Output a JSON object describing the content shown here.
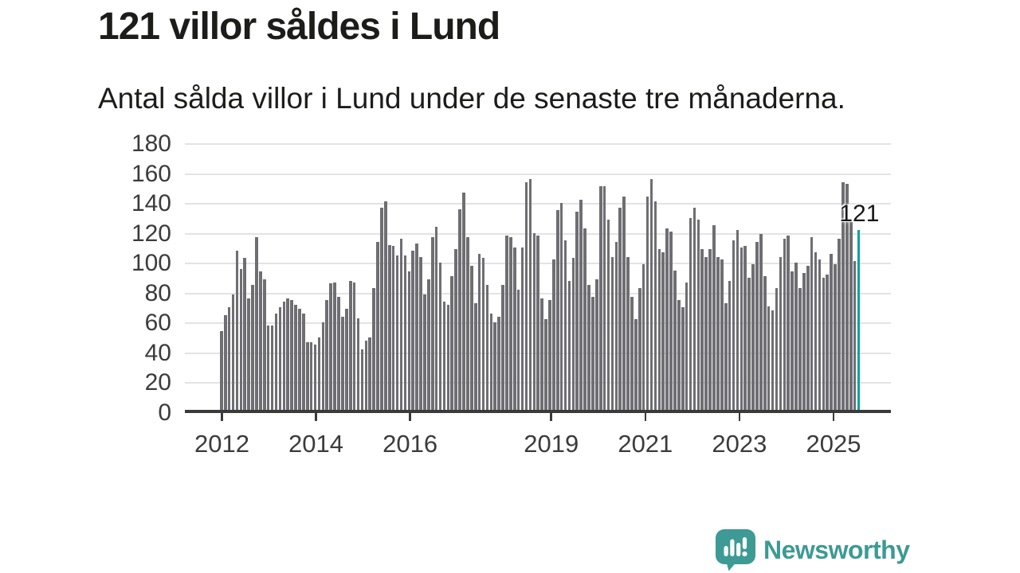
{
  "header": {
    "title": "121 villor såldes i Lund",
    "subtitle": "Antal sålda villor i Lund under de senaste tre månaderna."
  },
  "annotation": {
    "value_label": "121"
  },
  "branding": {
    "name": "Newsworthy",
    "icon": "speech-bubble-bar-chart-icon"
  },
  "colors": {
    "bar": "#6e6e73",
    "highlight": "#00a49c",
    "gridline": "#e3e3e3",
    "axis": "#3a3a3a",
    "text": "#1c1c1a",
    "brand": "#3d9a94"
  },
  "chart_data": {
    "type": "bar",
    "title": "121 villor såldes i Lund",
    "subtitle": "Antal sålda villor i Lund under de senaste tre månaderna.",
    "x_description": "monthly bars from January 2012, rolling three-month totals",
    "values": [
      53,
      64,
      69,
      78,
      107,
      95,
      102,
      75,
      84,
      116,
      93,
      88,
      57,
      57,
      65,
      69,
      73,
      75,
      74,
      71,
      68,
      65,
      46,
      46,
      44,
      49,
      59,
      74,
      85,
      86,
      76,
      63,
      68,
      87,
      86,
      62,
      41,
      47,
      49,
      82,
      113,
      136,
      140,
      111,
      110,
      104,
      115,
      104,
      93,
      107,
      112,
      103,
      78,
      88,
      116,
      123,
      99,
      73,
      71,
      90,
      108,
      135,
      146,
      116,
      97,
      72,
      105,
      102,
      84,
      65,
      59,
      63,
      84,
      117,
      116,
      109,
      81,
      109,
      153,
      155,
      119,
      117,
      75,
      61,
      74,
      101,
      134,
      139,
      114,
      87,
      102,
      133,
      141,
      122,
      84,
      76,
      88,
      150,
      150,
      128,
      103,
      113,
      136,
      143,
      103,
      76,
      61,
      82,
      98,
      143,
      155,
      140,
      108,
      106,
      122,
      120,
      94,
      74,
      69,
      86,
      129,
      136,
      128,
      108,
      103,
      108,
      124,
      103,
      101,
      72,
      87,
      114,
      121,
      109,
      110,
      89,
      98,
      113,
      118,
      90,
      70,
      67,
      82,
      103,
      115,
      117,
      93,
      99,
      82,
      92,
      97,
      116,
      106,
      101,
      89,
      91,
      105,
      98,
      115,
      153,
      152,
      128,
      100,
      121
    ],
    "highlight_index": 163,
    "highlight_value": 121,
    "ylim": [
      0,
      180
    ],
    "yticks": [
      0,
      20,
      40,
      60,
      80,
      100,
      120,
      140,
      160,
      180
    ],
    "x_ticks": [
      {
        "label": "2012",
        "index": 0
      },
      {
        "label": "2014",
        "index": 24
      },
      {
        "label": "2016",
        "index": 48
      },
      {
        "label": "2019",
        "index": 84
      },
      {
        "label": "2021",
        "index": 108
      },
      {
        "label": "2023",
        "index": 132
      },
      {
        "label": "2025",
        "index": 156
      }
    ],
    "grid": true,
    "legend": "none"
  }
}
